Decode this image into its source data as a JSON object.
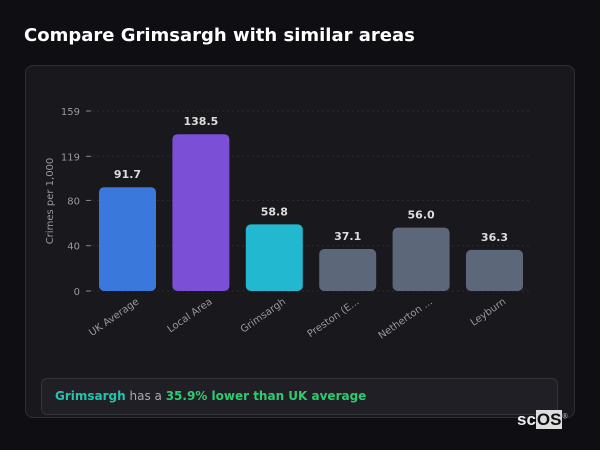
{
  "title": "Compare Grimsargh with similar areas",
  "chart_data": {
    "type": "bar",
    "categories": [
      "UK Average",
      "Local Area",
      "Grimsargh",
      "Preston (E...",
      "Netherton ...",
      "Leyburn"
    ],
    "values": [
      91.7,
      138.5,
      58.8,
      37.1,
      56.0,
      36.3
    ],
    "data_labels": [
      "91.7",
      "138.5",
      "58.8",
      "37.1",
      "56.0",
      "36.3"
    ],
    "colors": [
      "#3b78dc",
      "#7b4fd6",
      "#22b8cf",
      "#5c6779",
      "#5c6779",
      "#5c6779"
    ],
    "ylabel": "Crimes per 1,000",
    "yticks": [
      0,
      40,
      80,
      119,
      159
    ],
    "ylim": [
      0,
      159
    ],
    "grid": true
  },
  "summary": {
    "area": "Grimsargh",
    "middle": " has a ",
    "comparison": "35.9% lower than UK average"
  },
  "logo": {
    "text_a": "sc",
    "text_b": "OS",
    "mark": "®"
  }
}
